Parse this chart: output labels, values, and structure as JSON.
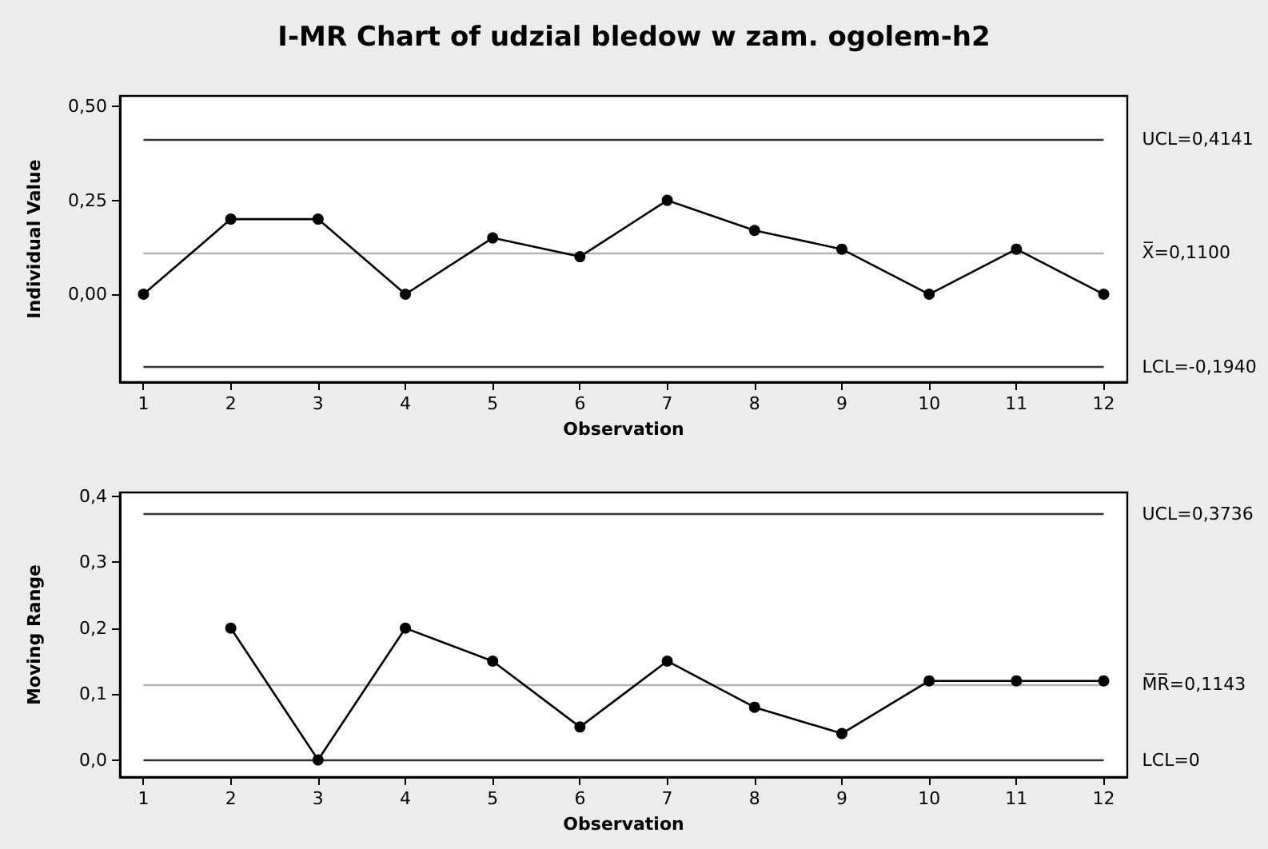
{
  "chart_data": [
    {
      "type": "line",
      "title": "I-MR Chart of udzial bledow w zam. ogolem-h2",
      "xlabel": "Observation",
      "ylabel": "Individual Value",
      "x": [
        1,
        2,
        3,
        4,
        5,
        6,
        7,
        8,
        9,
        10,
        11,
        12
      ],
      "series": [
        {
          "color": "#000000",
          "values": [
            0,
            0.2,
            0.2,
            0,
            0.15,
            0.1,
            0.25,
            0.17,
            0.12,
            0,
            0.12,
            0
          ]
        }
      ],
      "xlim": [
        0.73,
        12.27
      ],
      "xticks": [
        1,
        2,
        3,
        4,
        5,
        6,
        7,
        8,
        9,
        10,
        11,
        12
      ],
      "ylim": [
        -0.234,
        0.528
      ],
      "yticks": [
        {
          "value": 0,
          "label": "0,00"
        },
        {
          "value": 0.25,
          "label": "0,25"
        },
        {
          "value": 0.5,
          "label": "0,50"
        }
      ],
      "ref_lines": [
        {
          "axis": "y",
          "value": 0.4141,
          "label": "UCL=0,4141",
          "color": "#333333"
        },
        {
          "axis": "y",
          "value": 0.11,
          "label": "X̅=0,1100",
          "color": "#b4b4b4"
        },
        {
          "axis": "y",
          "value": -0.194,
          "label": "LCL=-0,1940",
          "color": "#333333"
        }
      ],
      "marker": "circle",
      "line_style": "solid",
      "grid": false
    },
    {
      "type": "line",
      "xlabel": "Observation",
      "ylabel": "Moving Range",
      "series": [
        {
          "color": "#000000",
          "x": [
            2,
            3,
            4,
            5,
            6,
            7,
            8,
            9,
            10,
            11,
            12
          ],
          "values": [
            0.2,
            0,
            0.2,
            0.15,
            0.05,
            0.15,
            0.08,
            0.04,
            0.12,
            0.12,
            0.12
          ]
        }
      ],
      "xlim": [
        0.73,
        12.27
      ],
      "xticks": [
        1,
        2,
        3,
        4,
        5,
        6,
        7,
        8,
        9,
        10,
        11,
        12
      ],
      "ylim": [
        -0.026,
        0.406
      ],
      "yticks": [
        {
          "value": 0,
          "label": "0,0"
        },
        {
          "value": 0.1,
          "label": "0,1"
        },
        {
          "value": 0.2,
          "label": "0,2"
        },
        {
          "value": 0.3,
          "label": "0,3"
        },
        {
          "value": 0.4,
          "label": "0,4"
        }
      ],
      "ref_lines": [
        {
          "axis": "y",
          "value": 0.3736,
          "label": "UCL=0,3736",
          "color": "#333333"
        },
        {
          "axis": "y",
          "value": 0.1143,
          "label": "M̅R̅=0,1143",
          "color": "#b4b4b4"
        },
        {
          "axis": "y",
          "value": 0,
          "label": "LCL=0",
          "color": "#333333"
        }
      ],
      "marker": "circle",
      "line_style": "solid",
      "grid": false
    }
  ]
}
